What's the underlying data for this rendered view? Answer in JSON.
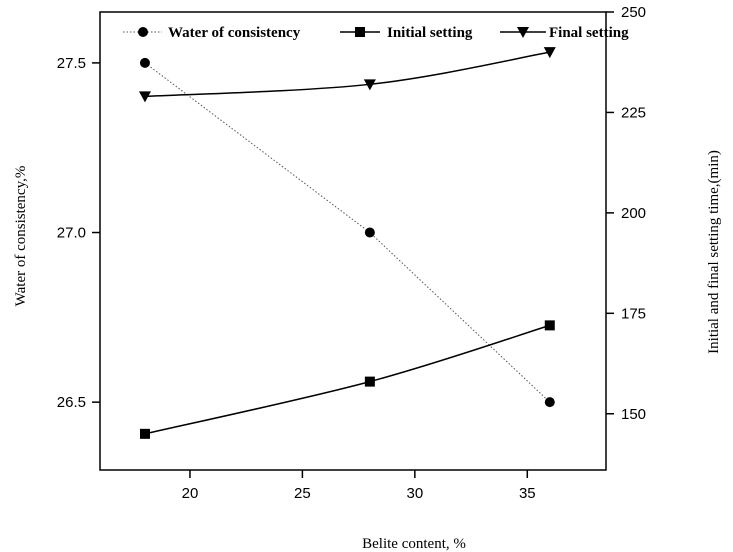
{
  "chart_data": {
    "type": "line",
    "title": "",
    "xlabel": "Belite content, %",
    "ylabel_left": "Water of consistency,%",
    "ylabel_right": "Initial and final setting time,(min)",
    "xlim": [
      16,
      38.5
    ],
    "ylim_left": [
      26.3,
      27.65
    ],
    "ylim_right": [
      136,
      250
    ],
    "x_ticks": [
      "20",
      "25",
      "30",
      "35"
    ],
    "y_ticks_left": [
      "26.5",
      "27.0",
      "27.5"
    ],
    "y_ticks_right": [
      "150",
      "175",
      "200",
      "225",
      "250"
    ],
    "x": [
      18,
      28,
      36
    ],
    "series": [
      {
        "name": "Water of consistency",
        "axis": "left",
        "marker": "circle",
        "line": "dotted",
        "values": [
          27.5,
          27.0,
          26.5
        ]
      },
      {
        "name": "Initial setting",
        "axis": "right",
        "marker": "square",
        "line": "solid",
        "values": [
          145,
          158,
          172
        ]
      },
      {
        "name": "Final setting",
        "axis": "right",
        "marker": "triangle-down",
        "line": "solid",
        "values": [
          229,
          232,
          240
        ]
      }
    ],
    "legend_position": "top",
    "grid": false
  }
}
